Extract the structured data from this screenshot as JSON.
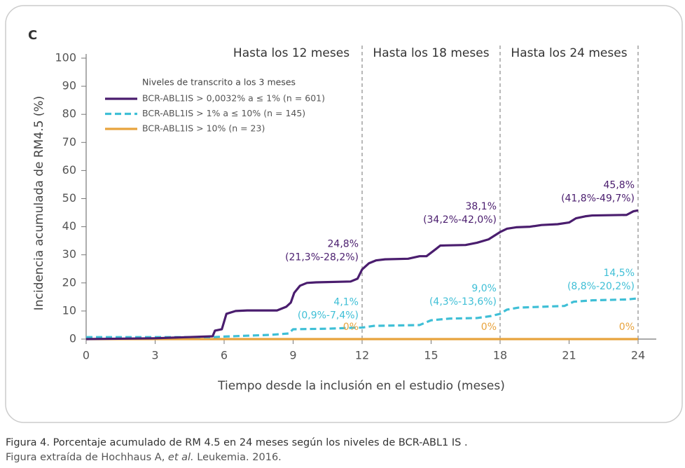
{
  "chart_data": {
    "type": "line",
    "panel": "C",
    "xlabel": "Tiempo desde la inclusión en el estudio (meses)",
    "ylabel": "Incidencia acumulada de RM4.5 (%)",
    "legend_title": "Niveles de transcrito a los 3 meses",
    "xlim": [
      0,
      24
    ],
    "ylim": [
      0,
      100
    ],
    "xticks": [
      0,
      3,
      6,
      9,
      12,
      15,
      18,
      21,
      24
    ],
    "yticks": [
      0,
      10,
      20,
      30,
      40,
      50,
      60,
      70,
      80,
      90,
      100
    ],
    "grid": false,
    "series": [
      {
        "name": "BCR-ABL1IS > 0,0032% a ≤ 1% (n = 601)",
        "color": "#4a1d6e",
        "dashed": false,
        "x": [
          0,
          3,
          5.5,
          5.6,
          5.9,
          6.1,
          6.5,
          7,
          8.3,
          8.7,
          8.9,
          9.05,
          9.3,
          9.6,
          10,
          11.5,
          11.8,
          12,
          12.3,
          12.6,
          13,
          14,
          14.5,
          14.8,
          15.2,
          15.4,
          16.5,
          17,
          17.5,
          18,
          18.3,
          18.7,
          19.3,
          19.8,
          20.5,
          21,
          21.3,
          21.7,
          22,
          23.5,
          23.8,
          24
        ],
        "values": [
          0,
          0.3,
          1,
          3,
          3.5,
          9,
          10,
          10.2,
          10.2,
          11.5,
          13,
          16.5,
          19,
          20,
          20.2,
          20.5,
          21.5,
          24.8,
          27,
          28,
          28.4,
          28.6,
          29.5,
          29.5,
          32,
          33.3,
          33.5,
          34.3,
          35.5,
          38.1,
          39.3,
          39.8,
          40,
          40.6,
          40.9,
          41.5,
          43,
          43.7,
          44,
          44.2,
          45.5,
          45.8
        ]
      },
      {
        "name": "BCR-ABL1IS > 1% a ≤ 10% (n = 145)",
        "color": "#3fbfd6",
        "dashed": true,
        "x": [
          0,
          5.5,
          6,
          8,
          8.8,
          9,
          10.5,
          11.5,
          12,
          12.5,
          14.5,
          15,
          15.8,
          17,
          17.6,
          18,
          18.3,
          18.8,
          20.8,
          21.2,
          22,
          23.5,
          24
        ],
        "values": [
          0.7,
          0.7,
          0.9,
          1.5,
          2,
          3.5,
          3.7,
          4,
          4.1,
          4.7,
          5,
          6.7,
          7.3,
          7.5,
          8.2,
          9,
          10.5,
          11.2,
          11.8,
          13.3,
          13.8,
          14.1,
          14.5
        ]
      },
      {
        "name": "BCR-ABL1IS > 10% (n = 23)",
        "color": "#e8a33d",
        "dashed": false,
        "x": [
          0,
          24
        ],
        "values": [
          0,
          0
        ]
      }
    ],
    "periods": [
      {
        "x": 12,
        "label": "Hasta los 12 meses"
      },
      {
        "x": 18,
        "label": "Hasta los 18 meses"
      },
      {
        "x": 24,
        "label": "Hasta los 24 meses"
      }
    ],
    "annotations": [
      {
        "x": 12,
        "y": 24.8,
        "color": "#4a1d6e",
        "lines": [
          "24,8%",
          "(21,3%-28,2%)"
        ]
      },
      {
        "x": 12,
        "y": 4.1,
        "color": "#3fbfd6",
        "lines": [
          "4,1%",
          "(0,9%-7,4%)"
        ]
      },
      {
        "x": 12,
        "y": 0,
        "color": "#e8a33d",
        "lines": [
          "0%"
        ]
      },
      {
        "x": 18,
        "y": 38.1,
        "color": "#4a1d6e",
        "lines": [
          "38,1%",
          "(34,2%-42,0%)"
        ]
      },
      {
        "x": 18,
        "y": 9.0,
        "color": "#3fbfd6",
        "lines": [
          "9,0%",
          "(4,3%-13,6%)"
        ]
      },
      {
        "x": 18,
        "y": 0,
        "color": "#e8a33d",
        "lines": [
          "0%"
        ]
      },
      {
        "x": 24,
        "y": 45.8,
        "color": "#4a1d6e",
        "lines": [
          "45,8%",
          "(41,8%-49,7%)"
        ]
      },
      {
        "x": 24,
        "y": 14.5,
        "color": "#3fbfd6",
        "lines": [
          "14,5%",
          "(8,8%-20,2%)"
        ]
      },
      {
        "x": 24,
        "y": 0,
        "color": "#e8a33d",
        "lines": [
          "0%"
        ]
      }
    ]
  },
  "caption": {
    "line1": "Figura 4. Porcentaje acumulado de RM 4.5 en 24 meses según los niveles de BCR-ABL1 IS .",
    "line2": [
      "Figura extraída de Hochhaus A, ",
      "et al.",
      " Leukemia. 2016."
    ]
  }
}
